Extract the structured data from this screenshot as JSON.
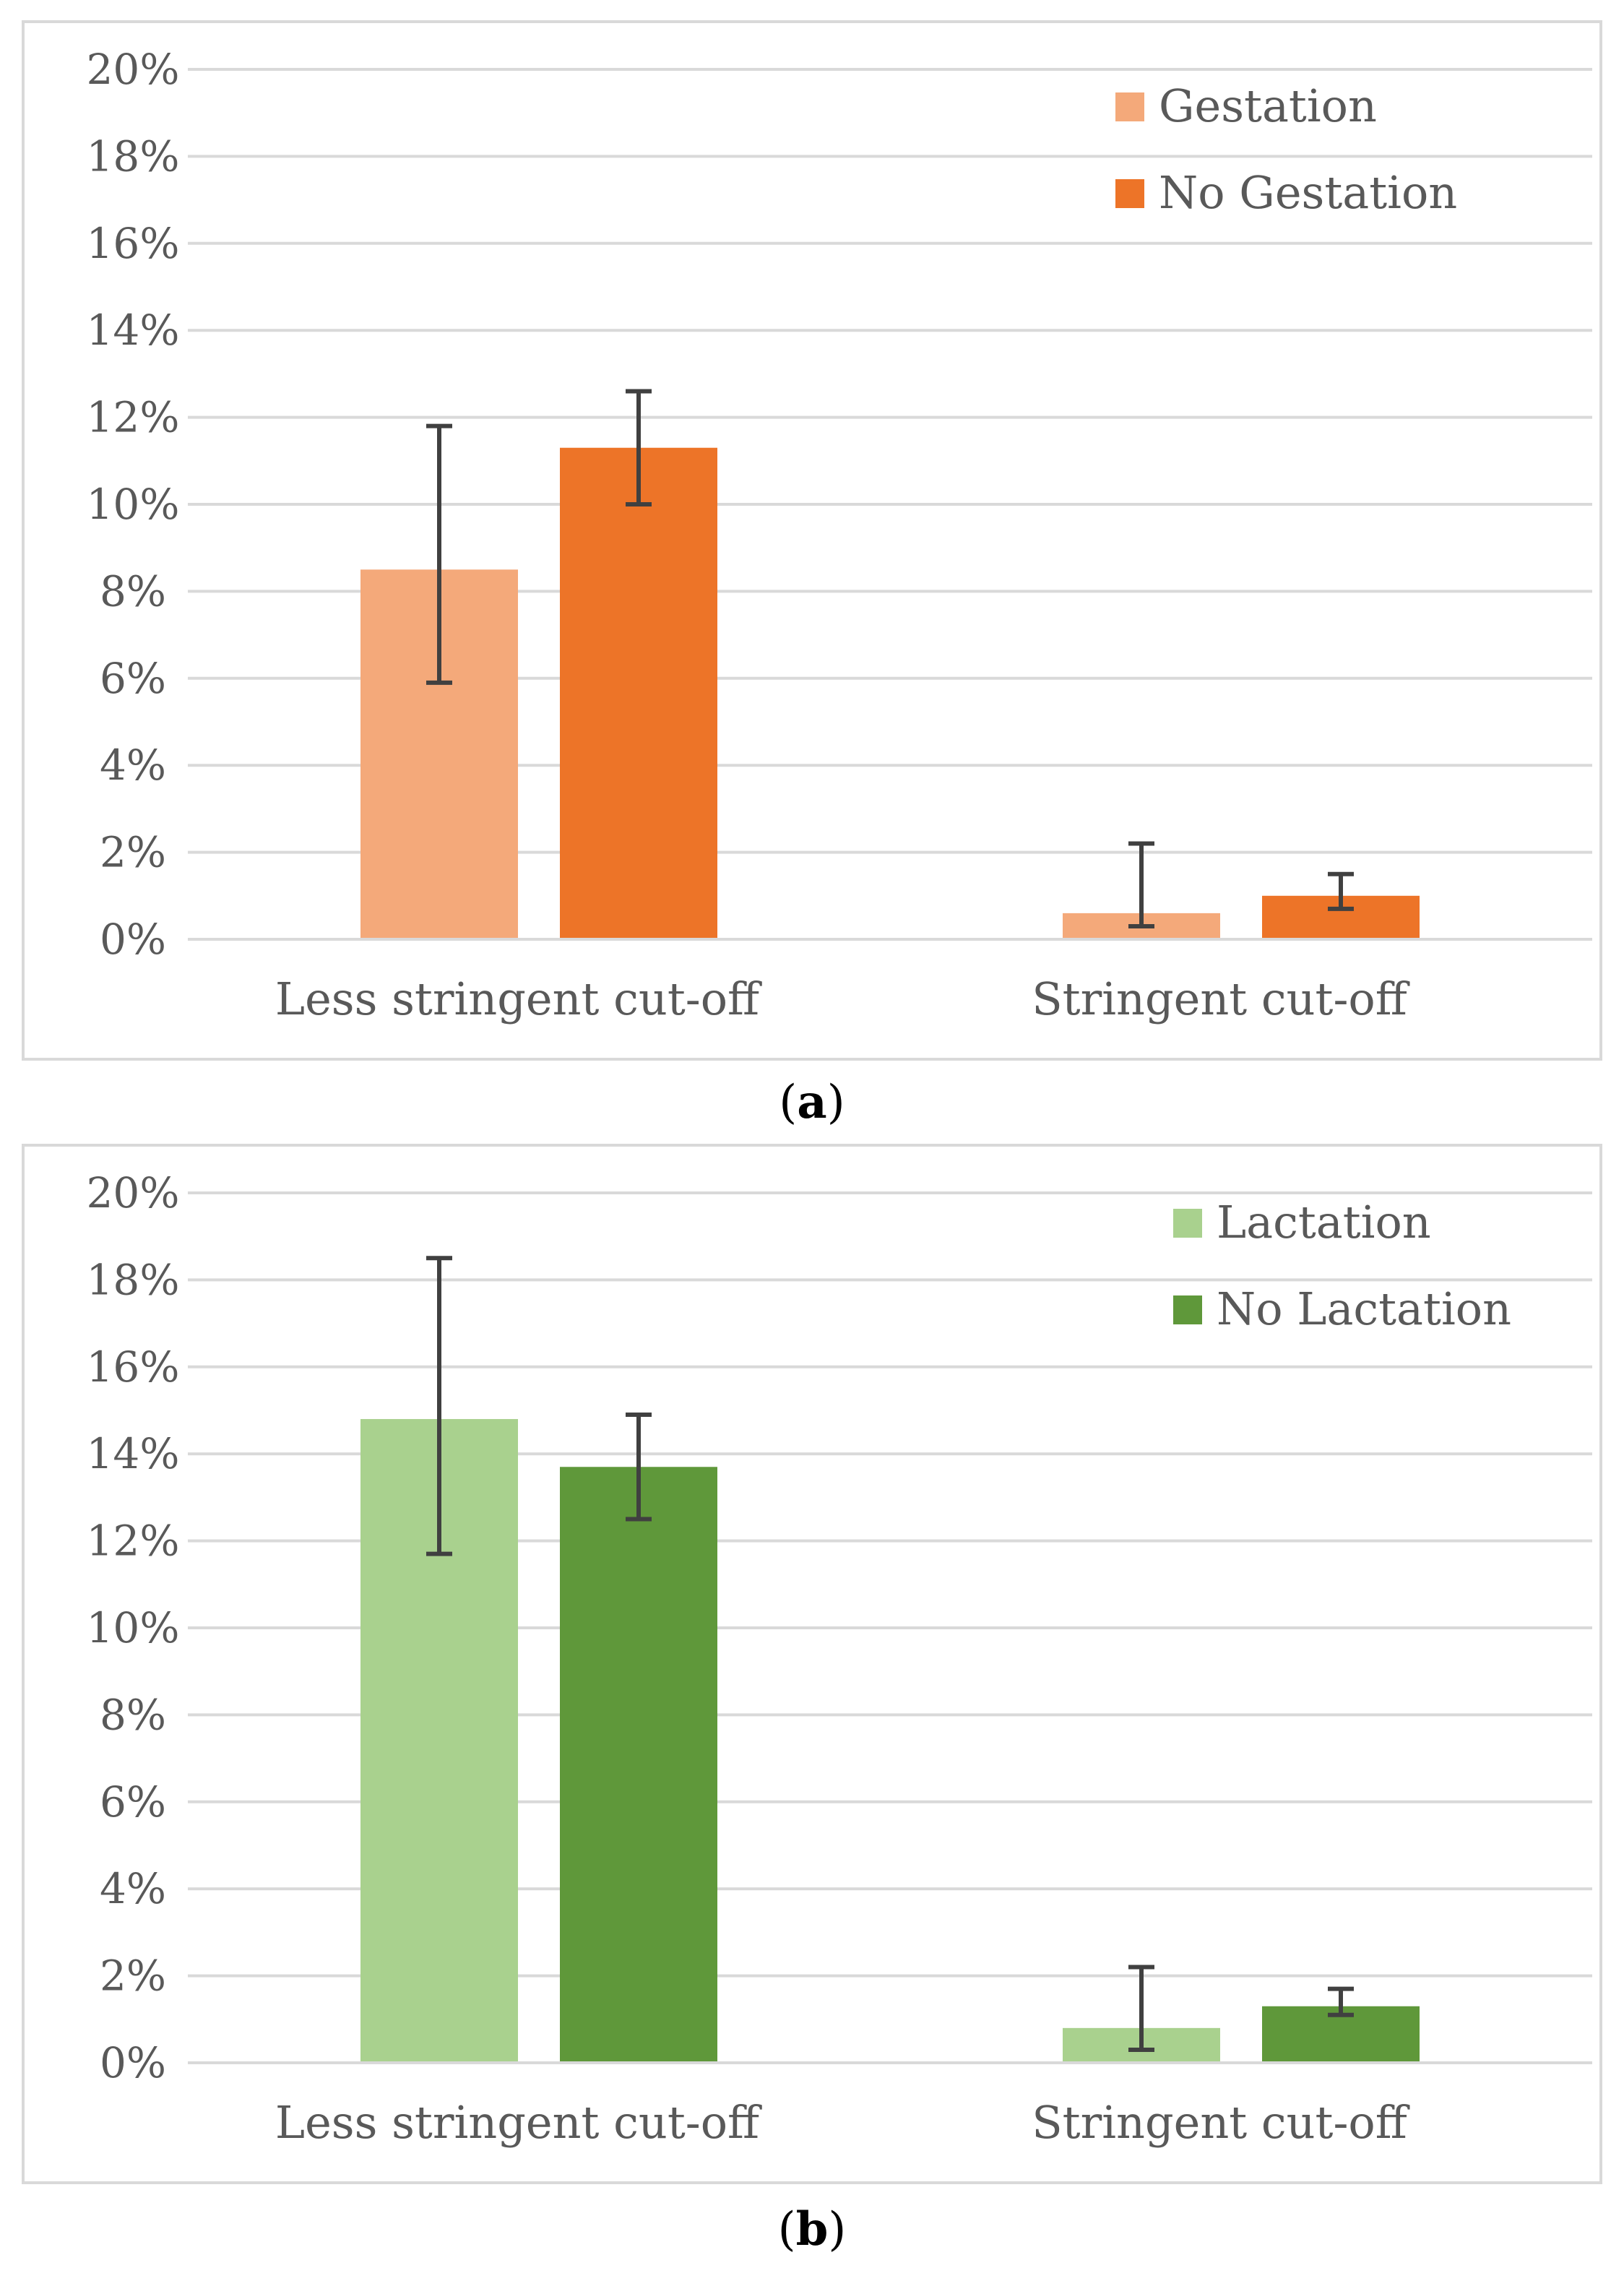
{
  "chart_data": [
    {
      "panel": "a",
      "type": "bar",
      "categories": [
        "Less stringent cut-off",
        "Stringent cut-off"
      ],
      "series": [
        {
          "name": "Gestation",
          "color": "#f4a97a",
          "values": [
            8.5,
            0.6
          ],
          "err_low": [
            5.9,
            0.3
          ],
          "err_high": [
            11.8,
            2.2
          ]
        },
        {
          "name": "No Gestation",
          "color": "#ed7428",
          "values": [
            11.3,
            1.0
          ],
          "err_low": [
            10.0,
            0.7
          ],
          "err_high": [
            12.6,
            1.5
          ]
        }
      ],
      "y_ticks": [
        "0%",
        "2%",
        "4%",
        "6%",
        "8%",
        "10%",
        "12%",
        "14%",
        "16%",
        "18%",
        "20%"
      ],
      "ylim": [
        0,
        20
      ],
      "legend_position": "top-right",
      "grid": true
    },
    {
      "panel": "b",
      "type": "bar",
      "categories": [
        "Less stringent cut-off",
        "Stringent cut-off"
      ],
      "series": [
        {
          "name": "Lactation",
          "color": "#a9d18e",
          "values": [
            14.8,
            0.8
          ],
          "err_low": [
            11.7,
            0.3
          ],
          "err_high": [
            18.5,
            2.2
          ]
        },
        {
          "name": "No Lactation",
          "color": "#5f983a",
          "values": [
            13.7,
            1.3
          ],
          "err_low": [
            12.5,
            1.1
          ],
          "err_high": [
            14.9,
            1.7
          ]
        }
      ],
      "y_ticks": [
        "0%",
        "2%",
        "4%",
        "6%",
        "8%",
        "10%",
        "12%",
        "14%",
        "16%",
        "18%",
        "20%"
      ],
      "ylim": [
        0,
        20
      ],
      "legend_position": "top-right",
      "grid": true
    }
  ],
  "captions": {
    "a": "a",
    "b": "b"
  },
  "colors": {
    "grid": "#d9d9d9",
    "axis_text": "#595959",
    "error_bar": "#404040"
  }
}
